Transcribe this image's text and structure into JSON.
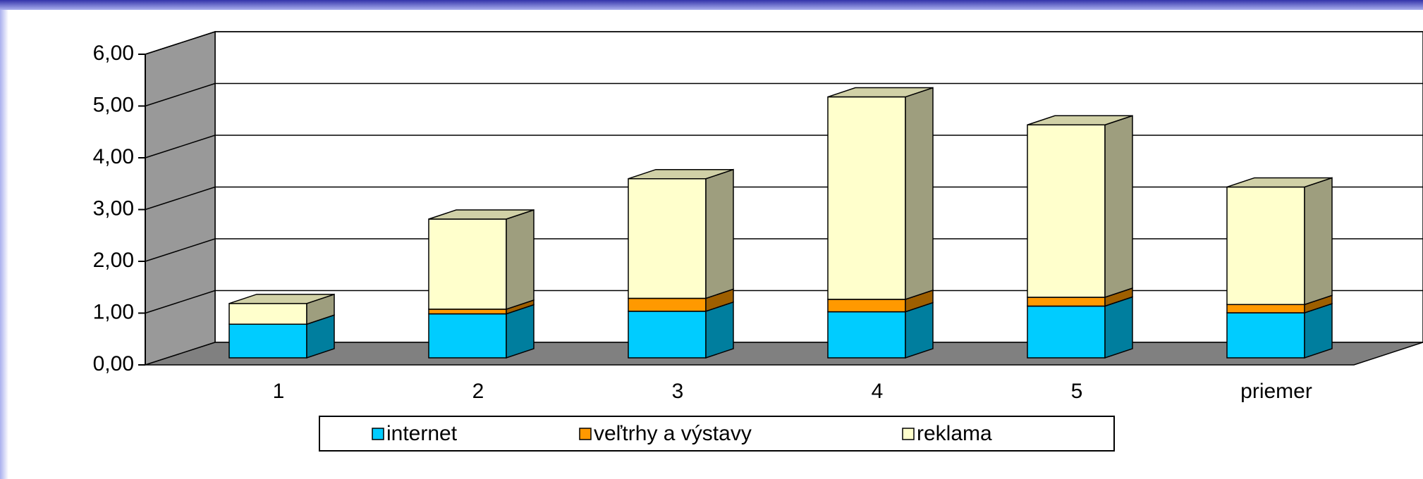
{
  "chart_data": {
    "type": "bar3d_stacked",
    "categories": [
      "1",
      "2",
      "3",
      "4",
      "5",
      "priemer"
    ],
    "series": [
      {
        "name": "internet",
        "color": "#00ccff",
        "values": [
          0.65,
          0.85,
          0.9,
          0.89,
          1.0,
          0.87
        ]
      },
      {
        "name": "veľtrhy a výstavy",
        "color": "#ff9900",
        "values": [
          0,
          0.09,
          0.25,
          0.24,
          0.17,
          0.16
        ]
      },
      {
        "name": "reklama",
        "color": "#ffffcc",
        "values": [
          0.4,
          1.74,
          2.31,
          3.91,
          3.33,
          2.27
        ]
      }
    ],
    "ylim": [
      0,
      6
    ],
    "yticks": [
      {
        "value": 0,
        "label": "0,00"
      },
      {
        "value": 1,
        "label": "1,00"
      },
      {
        "value": 2,
        "label": "2,00"
      },
      {
        "value": 3,
        "label": "3,00"
      },
      {
        "value": 4,
        "label": "4,00"
      },
      {
        "value": 5,
        "label": "5,00"
      },
      {
        "value": 6,
        "label": "6,00"
      }
    ],
    "grid": true,
    "legend": "bottom"
  }
}
